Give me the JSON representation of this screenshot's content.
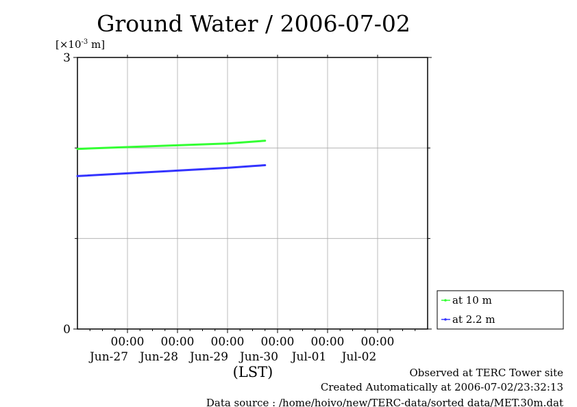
{
  "chart_data": {
    "type": "line",
    "title": "Ground Water / 2006-07-02",
    "ylabel": "[×10-3 m]",
    "ylabel_parts": {
      "base": "[×10",
      "exp": "-3",
      "unit": " m]"
    },
    "xlabel": "(LST)",
    "x_ticks": [
      {
        "time": "00:00",
        "date": "Jun-27"
      },
      {
        "time": "00:00",
        "date": "Jun-28"
      },
      {
        "time": "00:00",
        "date": "Jun-29"
      },
      {
        "time": "00:00",
        "date": "Jun-30"
      },
      {
        "time": "00:00",
        "date": "Jul-01"
      },
      {
        "time": "00:00",
        "date": "Jul-02"
      }
    ],
    "x_range": [
      "2006-06-26 00:00",
      "2006-07-03 00:00"
    ],
    "y_ticks": [
      "0",
      "3"
    ],
    "ylim": [
      0,
      3
    ],
    "grid": true,
    "legend_position": "bottom-right outside",
    "series": [
      {
        "name": "at 10 m",
        "color": "#33ff33",
        "x": [
          "2006-06-26 00:00",
          "2006-06-27 00:00",
          "2006-06-28 00:00",
          "2006-06-29 00:00",
          "2006-06-29 12:00",
          "2006-06-29 18:00"
        ],
        "y": [
          1.99,
          2.01,
          2.03,
          2.05,
          2.07,
          2.08
        ]
      },
      {
        "name": "at 2.2 m",
        "color": "#3333ff",
        "x": [
          "2006-06-26 00:00",
          "2006-06-27 00:00",
          "2006-06-28 00:00",
          "2006-06-29 00:00",
          "2006-06-29 12:00",
          "2006-06-29 18:00"
        ],
        "y": [
          1.69,
          1.72,
          1.75,
          1.78,
          1.8,
          1.81
        ]
      }
    ]
  },
  "footer": {
    "line1": "Observed at TERC Tower site",
    "line2": "Created Automatically at 2006-07-02/23:32:13",
    "line3": "Data source : /home/hoivo/new/TERC-data/sorted  data/MET.30m.dat"
  }
}
